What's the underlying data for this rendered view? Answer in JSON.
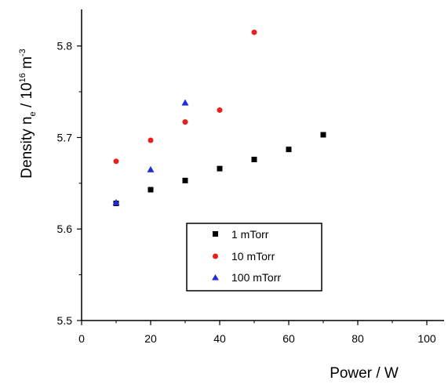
{
  "chart_data": {
    "type": "scatter",
    "xlabel": "Power / W",
    "ylabel": {
      "main": "Density n",
      "sub": "e",
      "sep": " / 10",
      "exp": "16",
      "unit": " m",
      "unit_exp": "-3"
    },
    "xlim": [
      0,
      105
    ],
    "ylim": [
      5.5,
      5.84
    ],
    "x_ticks": [
      0,
      20,
      40,
      60,
      80,
      100
    ],
    "y_ticks": [
      5.5,
      5.6,
      5.7,
      5.8
    ],
    "x_tick_labels": [
      "0",
      "20",
      "40",
      "60",
      "80",
      "100"
    ],
    "y_tick_labels": [
      "5.5",
      "5.6",
      "5.7",
      "5.8"
    ],
    "legend_position": "bottom-center",
    "series": [
      {
        "name": "1 mTorr",
        "marker": "square",
        "color": "#000000",
        "points": [
          [
            10,
            5.628
          ],
          [
            20,
            5.643
          ],
          [
            30,
            5.653
          ],
          [
            40,
            5.666
          ],
          [
            50,
            5.676
          ],
          [
            60,
            5.687
          ],
          [
            70,
            5.703
          ]
        ]
      },
      {
        "name": "10 mTorr",
        "marker": "circle",
        "color": "#e8201c",
        "points": [
          [
            10,
            5.674
          ],
          [
            20,
            5.697
          ],
          [
            30,
            5.717
          ],
          [
            40,
            5.73
          ],
          [
            50,
            5.815
          ]
        ]
      },
      {
        "name": "100 mTorr",
        "marker": "triangle",
        "color": "#1f2fd8",
        "points": [
          [
            10,
            5.629
          ],
          [
            20,
            5.665
          ],
          [
            30,
            5.738
          ]
        ]
      }
    ]
  }
}
